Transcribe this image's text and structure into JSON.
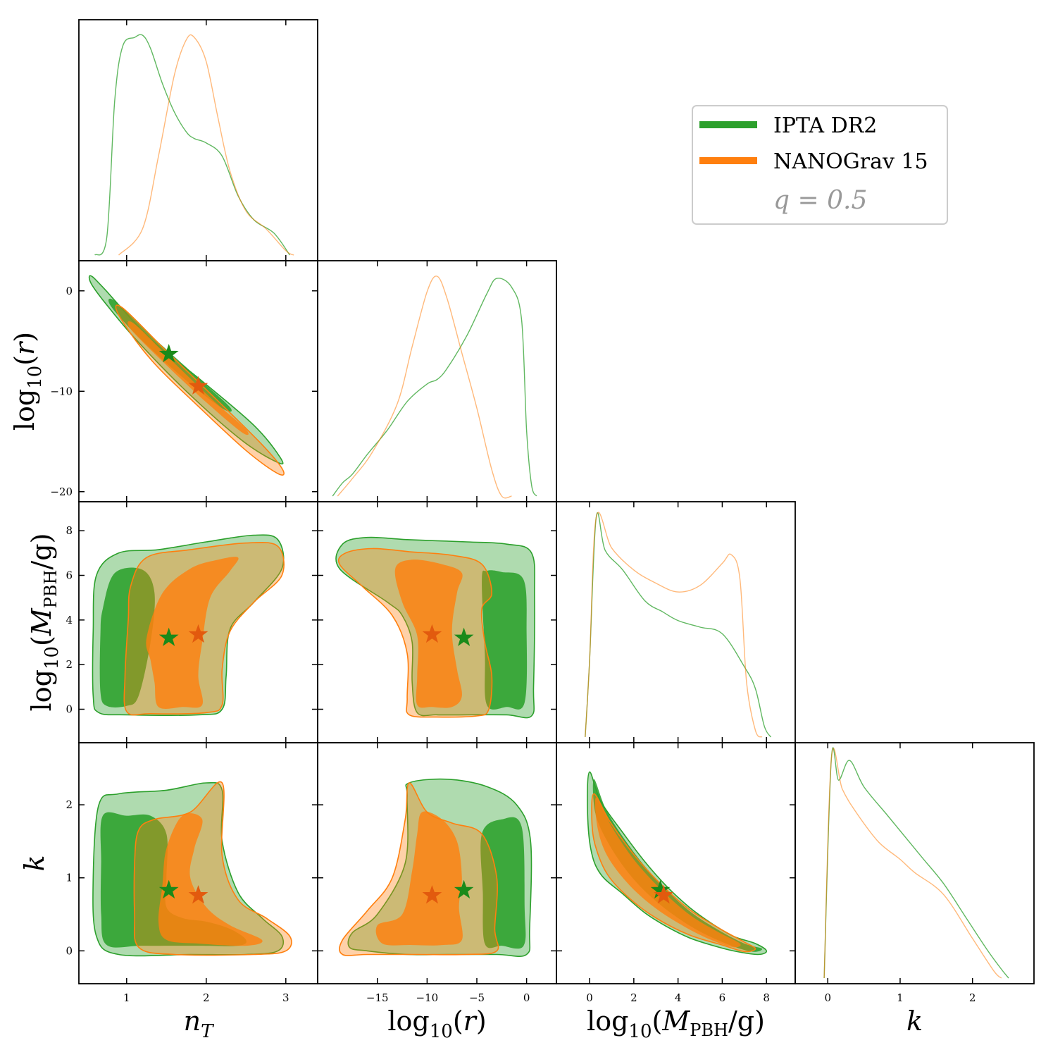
{
  "chart_data": {
    "type": "corner",
    "title": "",
    "parameters": [
      {
        "key": "nT",
        "label_main": "n",
        "label_sub": "T",
        "ticks": [
          1,
          2,
          3
        ],
        "range": [
          0.4,
          3.4
        ]
      },
      {
        "key": "logr",
        "label_main": "log",
        "label_sub": "10",
        "label_arg": "(r)",
        "ticks": [
          -20,
          -15,
          -10,
          -5,
          0
        ],
        "range": [
          -21,
          3
        ],
        "x_ticks": [
          -15,
          -10,
          -5,
          0
        ],
        "y_ticks": [
          -20,
          -10,
          0
        ],
        "y_tick_labels": [
          "−20",
          "−10",
          "0"
        ],
        "x_tick_labels": [
          "−15",
          "−10",
          "−5",
          "0"
        ]
      },
      {
        "key": "logM",
        "label_main": "log",
        "label_sub": "10",
        "label_arg_pre": "(M",
        "label_arg_sub": "PBH",
        "label_arg_post": "/g)",
        "ticks": [
          0,
          2,
          4,
          6,
          8
        ],
        "range": [
          -1.5,
          9.3
        ]
      },
      {
        "key": "k",
        "label_main": "k",
        "ticks": [
          0,
          1,
          2
        ],
        "range": [
          -0.45,
          2.85
        ]
      }
    ],
    "series": [
      {
        "name": "IPTA DR2",
        "color": "#2ca02c",
        "star_color": "#1a8a1a",
        "best_fit": {
          "nT": 1.53,
          "logr": -6.3,
          "logM": 3.2,
          "k": 0.83
        },
        "marginals": {
          "nT": [
            [
              0.6,
              0
            ],
            [
              0.75,
              0.08
            ],
            [
              0.85,
              0.7
            ],
            [
              0.95,
              0.95
            ],
            [
              1.1,
              0.99
            ],
            [
              1.2,
              1.0
            ],
            [
              1.3,
              0.94
            ],
            [
              1.45,
              0.78
            ],
            [
              1.6,
              0.65
            ],
            [
              1.75,
              0.56
            ],
            [
              1.85,
              0.53
            ],
            [
              2.0,
              0.51
            ],
            [
              2.2,
              0.45
            ],
            [
              2.4,
              0.27
            ],
            [
              2.6,
              0.16
            ],
            [
              2.85,
              0.1
            ],
            [
              3.05,
              0.0
            ]
          ],
          "logr": [
            [
              -19.5,
              0
            ],
            [
              -18.5,
              0.06
            ],
            [
              -17.5,
              0.1
            ],
            [
              -16,
              0.19
            ],
            [
              -14,
              0.3
            ],
            [
              -12,
              0.43
            ],
            [
              -10,
              0.51
            ],
            [
              -9,
              0.53
            ],
            [
              -8,
              0.58
            ],
            [
              -6,
              0.73
            ],
            [
              -4,
              0.92
            ],
            [
              -3,
              0.99
            ],
            [
              -1.5,
              0.95
            ],
            [
              -0.5,
              0.8
            ],
            [
              0,
              0.3
            ],
            [
              0.5,
              0.05
            ],
            [
              1,
              0
            ]
          ],
          "logM": [
            [
              -0.2,
              0
            ],
            [
              0,
              0.35
            ],
            [
              0.3,
              1.0
            ],
            [
              0.7,
              0.85
            ],
            [
              1.5,
              0.76
            ],
            [
              2.5,
              0.62
            ],
            [
              3.3,
              0.57
            ],
            [
              4,
              0.53
            ],
            [
              5,
              0.5
            ],
            [
              6,
              0.47
            ],
            [
              7,
              0.32
            ],
            [
              7.5,
              0.22
            ],
            [
              7.9,
              0.05
            ],
            [
              8.2,
              0
            ]
          ],
          "k": [
            [
              -0.05,
              0
            ],
            [
              0.05,
              1.0
            ],
            [
              0.15,
              0.9
            ],
            [
              0.3,
              0.99
            ],
            [
              0.5,
              0.87
            ],
            [
              0.8,
              0.75
            ],
            [
              1.0,
              0.67
            ],
            [
              1.3,
              0.55
            ],
            [
              1.6,
              0.43
            ],
            [
              1.9,
              0.28
            ],
            [
              2.2,
              0.13
            ],
            [
              2.4,
              0.04
            ],
            [
              2.5,
              0
            ]
          ]
        }
      },
      {
        "name": "NANOGrav 15",
        "color": "#ff7f0e",
        "star_color": "#e25a0e",
        "best_fit": {
          "nT": 1.9,
          "logr": -9.5,
          "logM": 3.35,
          "k": 0.76
        },
        "marginals": {
          "nT": [
            [
              0.9,
              0
            ],
            [
              1.2,
              0.12
            ],
            [
              1.4,
              0.45
            ],
            [
              1.6,
              0.82
            ],
            [
              1.75,
              0.98
            ],
            [
              1.85,
              0.99
            ],
            [
              2.0,
              0.88
            ],
            [
              2.15,
              0.62
            ],
            [
              2.3,
              0.38
            ],
            [
              2.5,
              0.2
            ],
            [
              2.75,
              0.12
            ],
            [
              3.0,
              0.02
            ],
            [
              3.1,
              0
            ]
          ],
          "logr": [
            [
              -19,
              0
            ],
            [
              -17.5,
              0.08
            ],
            [
              -15.5,
              0.2
            ],
            [
              -13,
              0.42
            ],
            [
              -11.5,
              0.68
            ],
            [
              -10,
              0.93
            ],
            [
              -9,
              1.0
            ],
            [
              -8,
              0.9
            ],
            [
              -6.5,
              0.65
            ],
            [
              -5,
              0.4
            ],
            [
              -3.5,
              0.12
            ],
            [
              -2.5,
              0
            ],
            [
              -1.5,
              0
            ]
          ],
          "logM": [
            [
              -0.2,
              0
            ],
            [
              0,
              0.35
            ],
            [
              0.3,
              1.0
            ],
            [
              1,
              0.86
            ],
            [
              2,
              0.76
            ],
            [
              3,
              0.7
            ],
            [
              4,
              0.66
            ],
            [
              5,
              0.69
            ],
            [
              6,
              0.79
            ],
            [
              6.4,
              0.83
            ],
            [
              6.8,
              0.72
            ],
            [
              7.1,
              0.25
            ],
            [
              7.5,
              0.03
            ],
            [
              7.8,
              0
            ]
          ],
          "k": [
            [
              -0.05,
              0
            ],
            [
              0.05,
              1.0
            ],
            [
              0.2,
              0.86
            ],
            [
              0.4,
              0.75
            ],
            [
              0.7,
              0.62
            ],
            [
              1.0,
              0.54
            ],
            [
              1.2,
              0.48
            ],
            [
              1.6,
              0.38
            ],
            [
              2.0,
              0.18
            ],
            [
              2.3,
              0.03
            ],
            [
              2.4,
              0
            ]
          ]
        }
      }
    ],
    "legend": {
      "entries": [
        "IPTA DR2",
        "NANOGrav 15"
      ],
      "note": "q = 0.5",
      "location": "top-right"
    }
  }
}
